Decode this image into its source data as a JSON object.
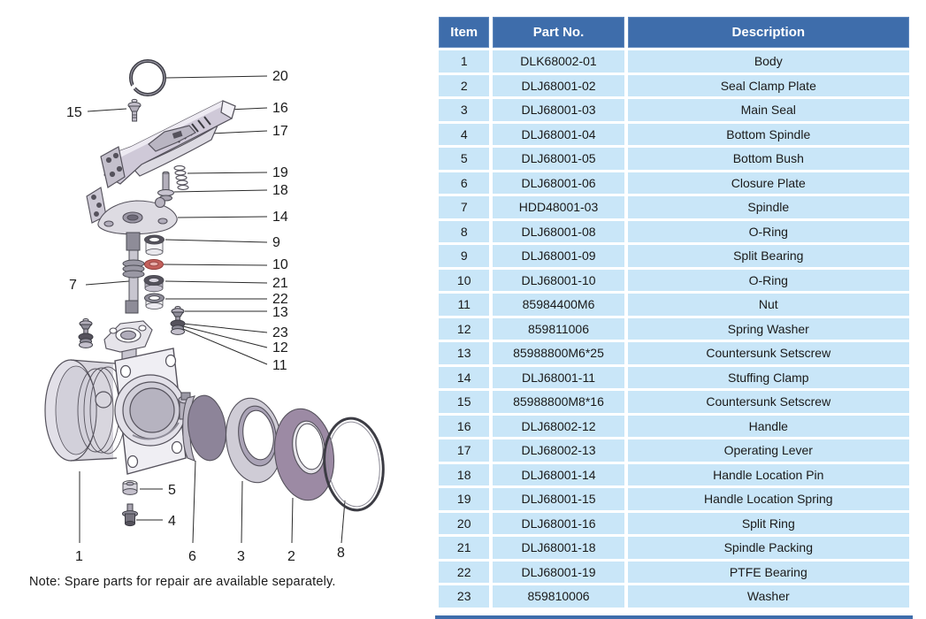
{
  "table": {
    "headers": {
      "item": "Item",
      "part_no": "Part No.",
      "description": "Description"
    },
    "rows": [
      {
        "item": "1",
        "part_no": "DLK68002-01",
        "description": "Body"
      },
      {
        "item": "2",
        "part_no": "DLJ68001-02",
        "description": "Seal Clamp Plate"
      },
      {
        "item": "3",
        "part_no": "DLJ68001-03",
        "description": "Main Seal"
      },
      {
        "item": "4",
        "part_no": "DLJ68001-04",
        "description": "Bottom Spindle"
      },
      {
        "item": "5",
        "part_no": "DLJ68001-05",
        "description": "Bottom Bush"
      },
      {
        "item": "6",
        "part_no": "DLJ68001-06",
        "description": "Closure Plate"
      },
      {
        "item": "7",
        "part_no": "HDD48001-03",
        "description": "Spindle"
      },
      {
        "item": "8",
        "part_no": "DLJ68001-08",
        "description": "O-Ring"
      },
      {
        "item": "9",
        "part_no": "DLJ68001-09",
        "description": "Split Bearing"
      },
      {
        "item": "10",
        "part_no": "DLJ68001-10",
        "description": "O-Ring"
      },
      {
        "item": "11",
        "part_no": "85984400M6",
        "description": "Nut"
      },
      {
        "item": "12",
        "part_no": "859811006",
        "description": "Spring Washer"
      },
      {
        "item": "13",
        "part_no": "85988800M6*25",
        "description": "Countersunk Setscrew"
      },
      {
        "item": "14",
        "part_no": "DLJ68001-11",
        "description": "Stuffing Clamp"
      },
      {
        "item": "15",
        "part_no": "85988800M8*16",
        "description": "Countersunk Setscrew"
      },
      {
        "item": "16",
        "part_no": "DLJ68002-12",
        "description": "Handle"
      },
      {
        "item": "17",
        "part_no": "DLJ68002-13",
        "description": "Operating Lever"
      },
      {
        "item": "18",
        "part_no": "DLJ68001-14",
        "description": "Handle Location Pin"
      },
      {
        "item": "19",
        "part_no": "DLJ68001-15",
        "description": "Handle Location Spring"
      },
      {
        "item": "20",
        "part_no": "DLJ68001-16",
        "description": "Split Ring"
      },
      {
        "item": "21",
        "part_no": "DLJ68001-18",
        "description": "Spindle Packing"
      },
      {
        "item": "22",
        "part_no": "DLJ68001-19",
        "description": "PTFE Bearing"
      },
      {
        "item": "23",
        "part_no": "859810006",
        "description": "Washer"
      }
    ]
  },
  "diagram": {
    "note": "Note: Spare parts for repair are available separately.",
    "callouts": {
      "n1": "1",
      "n2": "2",
      "n3": "3",
      "n4": "4",
      "n5": "5",
      "n6": "6",
      "n7": "7",
      "n8": "8",
      "n9": "9",
      "n10": "10",
      "n11": "11",
      "n12": "12",
      "n13": "13",
      "n14": "14",
      "n15": "15",
      "n16": "16",
      "n17": "17",
      "n18": "18",
      "n19": "19",
      "n20": "20",
      "n21": "21",
      "n22": "22",
      "n23": "23"
    }
  },
  "colors": {
    "header_bg": "#3e6dab",
    "header_text": "#ffffff",
    "row_bg": "#c9e6f8",
    "body_text": "#1a1a1a",
    "accent_red": "#c4615c",
    "purple_part": "#9c8aa4",
    "disc_part": "#8d8499"
  }
}
